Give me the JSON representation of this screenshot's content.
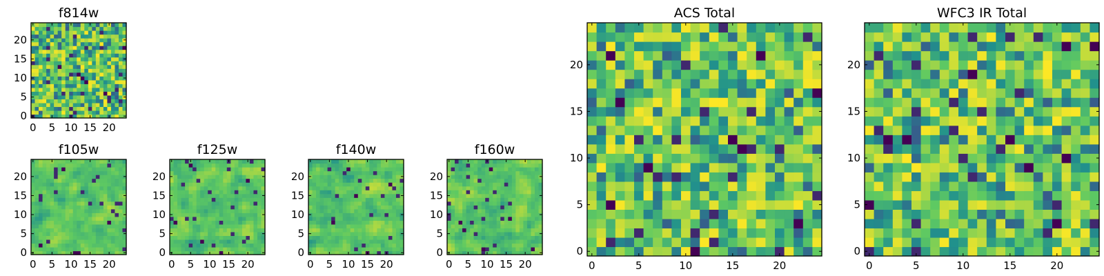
{
  "colors": {
    "colormap": [
      "#440154",
      "#3b528b",
      "#21918c",
      "#5ec962",
      "#fde725"
    ],
    "frame": "#000000",
    "background": "#ffffff"
  },
  "chart_data": [
    {
      "type": "heatmap",
      "title": "f814w",
      "resolution": 25,
      "smooth": false,
      "xlim": [
        0,
        24
      ],
      "ylim": [
        0,
        24
      ],
      "xticks": [
        0,
        5,
        10,
        15,
        20
      ],
      "yticks": [
        0,
        5,
        10,
        15,
        20
      ],
      "seed": 814,
      "dark_cells": [
        [
          12,
          11
        ],
        [
          13,
          10
        ],
        [
          14,
          9
        ],
        [
          24,
          18
        ],
        [
          7,
          13
        ],
        [
          19,
          6
        ]
      ]
    },
    {
      "type": "heatmap",
      "title": "f105w",
      "resolution": 25,
      "smooth": true,
      "xlim": [
        0,
        24
      ],
      "ylim": [
        0,
        24
      ],
      "xticks": [
        0,
        5,
        10,
        15,
        20
      ],
      "yticks": [
        0,
        5,
        10,
        15,
        20
      ],
      "seed": 105,
      "dark_cells": [
        [
          11,
          0
        ],
        [
          12,
          0
        ],
        [
          20,
          8
        ],
        [
          2,
          2
        ],
        [
          8,
          22
        ]
      ]
    },
    {
      "type": "heatmap",
      "title": "f125w",
      "resolution": 25,
      "smooth": true,
      "xlim": [
        0,
        24
      ],
      "ylim": [
        0,
        24
      ],
      "xticks": [
        0,
        5,
        10,
        15,
        20
      ],
      "yticks": [
        0,
        5,
        10,
        15,
        20
      ],
      "seed": 125,
      "dark_cells": [
        [
          8,
          3
        ],
        [
          5,
          23
        ],
        [
          20,
          19
        ],
        [
          13,
          0
        ],
        [
          1,
          8
        ]
      ]
    },
    {
      "type": "heatmap",
      "title": "f140w",
      "resolution": 25,
      "smooth": true,
      "xlim": [
        0,
        24
      ],
      "ylim": [
        0,
        24
      ],
      "xticks": [
        0,
        5,
        10,
        15,
        20
      ],
      "yticks": [
        0,
        5,
        10,
        15,
        20
      ],
      "seed": 140,
      "dark_cells": [
        [
          15,
          0
        ],
        [
          10,
          22
        ],
        [
          12,
          15
        ],
        [
          6,
          8
        ],
        [
          21,
          18
        ]
      ]
    },
    {
      "type": "heatmap",
      "title": "f160w",
      "resolution": 25,
      "smooth": true,
      "xlim": [
        0,
        24
      ],
      "ylim": [
        0,
        24
      ],
      "xticks": [
        0,
        5,
        10,
        15,
        20
      ],
      "yticks": [
        0,
        5,
        10,
        15,
        20
      ],
      "seed": 160,
      "dark_cells": [
        [
          9,
          1
        ],
        [
          22,
          1
        ],
        [
          3,
          8
        ],
        [
          4,
          6
        ],
        [
          16,
          9
        ],
        [
          11,
          22
        ]
      ]
    },
    {
      "type": "heatmap",
      "title": "ACS Total",
      "resolution": 25,
      "smooth": false,
      "xlim": [
        0,
        24
      ],
      "ylim": [
        0,
        24
      ],
      "xticks": [
        0,
        5,
        10,
        15,
        20
      ],
      "yticks": [
        0,
        5,
        10,
        15,
        20
      ],
      "seed": 1001,
      "dark_cells": [
        [
          2,
          21
        ],
        [
          3,
          16
        ],
        [
          18,
          21
        ],
        [
          24,
          17
        ],
        [
          15,
          12
        ],
        [
          16,
          11
        ],
        [
          6,
          9
        ],
        [
          2,
          5
        ],
        [
          22,
          3
        ],
        [
          11,
          0
        ]
      ]
    },
    {
      "type": "heatmap",
      "title": "WFC3 IR Total",
      "resolution": 25,
      "smooth": false,
      "xlim": [
        0,
        24
      ],
      "ylim": [
        0,
        24
      ],
      "xticks": [
        0,
        5,
        10,
        15,
        20
      ],
      "yticks": [
        0,
        5,
        10,
        15,
        20
      ],
      "seed": 1002,
      "dark_cells": [
        [
          21,
          22
        ],
        [
          24,
          22
        ],
        [
          11,
          19
        ],
        [
          15,
          12
        ],
        [
          2,
          12
        ],
        [
          4,
          12
        ],
        [
          21,
          10
        ],
        [
          20,
          3
        ],
        [
          0,
          5
        ],
        [
          17,
          9
        ]
      ]
    }
  ]
}
